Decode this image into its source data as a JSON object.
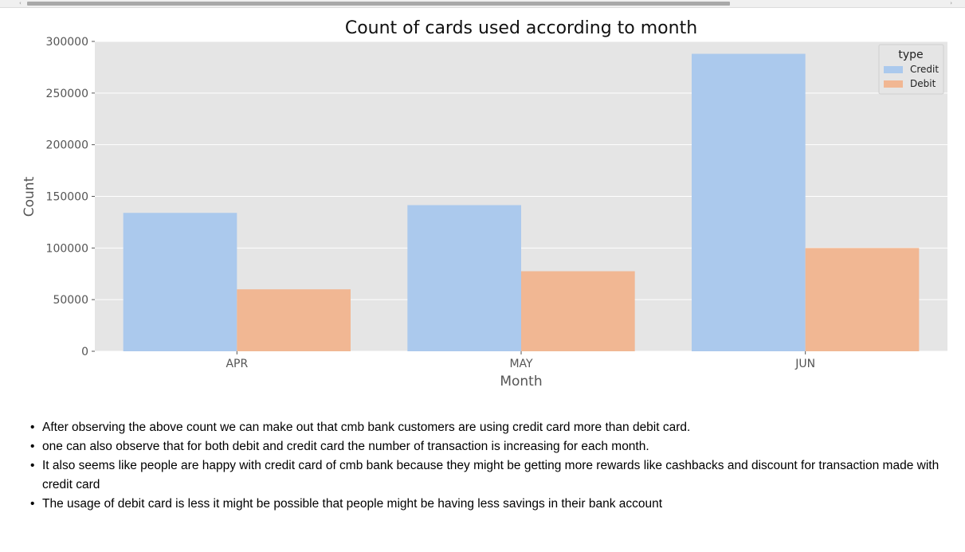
{
  "chart_data": {
    "type": "bar",
    "title": "Count of cards used according to month",
    "xlabel": "Month",
    "ylabel": "Count",
    "categories": [
      "APR",
      "MAY",
      "JUN"
    ],
    "series": [
      {
        "name": "Credit",
        "color": "#abc9ed",
        "values": [
          134000,
          141500,
          288000
        ]
      },
      {
        "name": "Debit",
        "color": "#f1b793",
        "values": [
          60000,
          77500,
          100000
        ]
      }
    ],
    "ylim": [
      0,
      300000
    ],
    "yticks": [
      0,
      50000,
      100000,
      150000,
      200000,
      250000,
      300000
    ],
    "grid": true,
    "legend": {
      "title": "type",
      "position": "top-right"
    }
  },
  "notes": [
    "After observing the above count we can make out that cmb bank customers are using credit card more than debit card.",
    "one can also observe that for both debit and credit card the number of transaction is increasing for each month.",
    "It also seems like people are happy with credit card of cmb bank because they might be getting more rewards like cashbacks and discount for transaction made with credit card",
    "The usage of debit card is less it might be possible that people might be having less savings in their bank account"
  ]
}
